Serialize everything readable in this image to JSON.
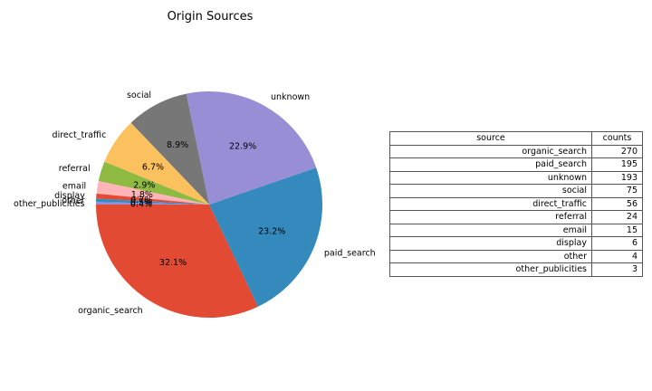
{
  "chart_data": {
    "type": "pie",
    "title": "Origin Sources",
    "slices": [
      {
        "label": "organic_search",
        "value": 270,
        "pct_label": "32.1%",
        "color": "#e24a33"
      },
      {
        "label": "paid_search",
        "value": 195,
        "pct_label": "23.2%",
        "color": "#348abd"
      },
      {
        "label": "unknown",
        "value": 193,
        "pct_label": "22.9%",
        "color": "#988ed5"
      },
      {
        "label": "social",
        "value": 75,
        "pct_label": "8.9%",
        "color": "#777777"
      },
      {
        "label": "direct_traffic",
        "value": 56,
        "pct_label": "6.7%",
        "color": "#fbc15e"
      },
      {
        "label": "referral",
        "value": 24,
        "pct_label": "2.9%",
        "color": "#8eba42"
      },
      {
        "label": "email",
        "value": 15,
        "pct_label": "1.8%",
        "color": "#ffb5b8"
      },
      {
        "label": "display",
        "value": 6,
        "pct_label": "0.7%",
        "color": "#e24a33"
      },
      {
        "label": "other",
        "value": 4,
        "pct_label": "0.5%",
        "color": "#348abd"
      },
      {
        "label": "other_publicities",
        "value": 3,
        "pct_label": "0.4%",
        "color": "#988ed5"
      }
    ]
  },
  "table": {
    "headers": [
      "source",
      "counts"
    ],
    "rows": [
      [
        "organic_search",
        "270"
      ],
      [
        "paid_search",
        "195"
      ],
      [
        "unknown",
        "193"
      ],
      [
        "social",
        "75"
      ],
      [
        "direct_traffic",
        "56"
      ],
      [
        "referral",
        "24"
      ],
      [
        "email",
        "15"
      ],
      [
        "display",
        "6"
      ],
      [
        "other",
        "4"
      ],
      [
        "other_publicities",
        "3"
      ]
    ]
  }
}
